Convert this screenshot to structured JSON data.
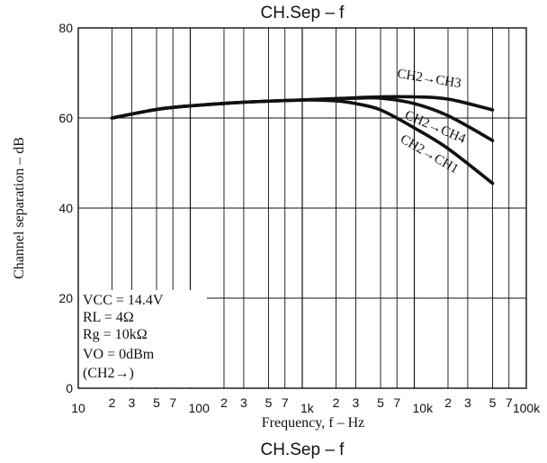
{
  "chart_data": {
    "type": "line",
    "title": "CH.Sep  –  f",
    "xlabel": "Frequency, f  –  Hz",
    "ylabel": "Channel separation  –  dB",
    "x_scale": "log",
    "xlim": [
      10,
      100000
    ],
    "ylim": [
      0,
      80
    ],
    "grid": true,
    "y_ticks": [
      0,
      20,
      40,
      60,
      80
    ],
    "x_ticks": [
      {
        "value": 10,
        "label": "10",
        "major": true
      },
      {
        "value": 20,
        "label": "2",
        "major": false
      },
      {
        "value": 30,
        "label": "3",
        "major": false
      },
      {
        "value": 50,
        "label": "5",
        "major": false
      },
      {
        "value": 70,
        "label": "7",
        "major": false
      },
      {
        "value": 100,
        "label": "100",
        "major": true
      },
      {
        "value": 200,
        "label": "2",
        "major": false
      },
      {
        "value": 300,
        "label": "3",
        "major": false
      },
      {
        "value": 500,
        "label": "5",
        "major": false
      },
      {
        "value": 700,
        "label": "7",
        "major": false
      },
      {
        "value": 1000,
        "label": "1k",
        "major": true
      },
      {
        "value": 2000,
        "label": "2",
        "major": false
      },
      {
        "value": 3000,
        "label": "3",
        "major": false
      },
      {
        "value": 5000,
        "label": "5",
        "major": false
      },
      {
        "value": 7000,
        "label": "7",
        "major": false
      },
      {
        "value": 10000,
        "label": "10k",
        "major": true
      },
      {
        "value": 20000,
        "label": "2",
        "major": false
      },
      {
        "value": 30000,
        "label": "3",
        "major": false
      },
      {
        "value": 50000,
        "label": "5",
        "major": false
      },
      {
        "value": 70000,
        "label": "7",
        "major": false
      },
      {
        "value": 100000,
        "label": "100k",
        "major": true
      }
    ],
    "series": [
      {
        "name": "CH2→CH3",
        "x": [
          20,
          50,
          100,
          300,
          1000,
          3000,
          5000,
          10000,
          20000,
          50000
        ],
        "values": [
          60,
          61.9,
          62.7,
          63.5,
          64,
          64.5,
          64.7,
          64.7,
          64.2,
          61.8
        ]
      },
      {
        "name": "CH2→CH4",
        "x": [
          20,
          50,
          100,
          300,
          1000,
          3000,
          5000,
          10000,
          20000,
          50000
        ],
        "values": [
          60,
          61.9,
          62.7,
          63.5,
          64,
          64.4,
          64.4,
          63.2,
          60.5,
          55
        ]
      },
      {
        "name": "CH2→CH1",
        "x": [
          20,
          50,
          100,
          300,
          1000,
          2000,
          3000,
          5000,
          10000,
          20000,
          50000
        ],
        "values": [
          60,
          61.9,
          62.7,
          63.5,
          64,
          63.8,
          63.2,
          61.8,
          57.8,
          53.2,
          45.5
        ]
      }
    ],
    "conditions": [
      "VCC = 14.4V",
      "RL = 4Ω",
      "Rg = 10kΩ",
      "VO = 0dBm",
      "(CH2→)"
    ],
    "footer_title": "CH.Sep  –  f"
  },
  "colors": {
    "line": "#111111",
    "grid": "#111111",
    "background": "#ffffff"
  }
}
